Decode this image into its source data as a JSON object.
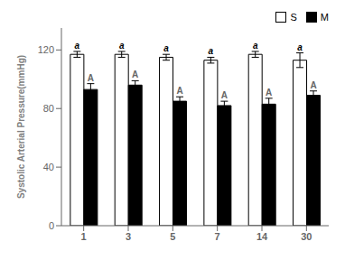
{
  "chart_data": {
    "type": "bar",
    "categories": [
      "1",
      "3",
      "5",
      "7",
      "14",
      "30"
    ],
    "series": [
      {
        "name": "S",
        "color": "#ffffff",
        "values": [
          117,
          117,
          115,
          113,
          117,
          113
        ],
        "errors": [
          2,
          2,
          2,
          2,
          2,
          5
        ],
        "annotations": [
          "a",
          "a",
          "a",
          "a",
          "a",
          "a"
        ]
      },
      {
        "name": "M",
        "color": "#000000",
        "values": [
          93,
          96,
          85,
          82,
          83,
          89
        ],
        "errors": [
          4,
          3,
          3,
          3,
          4,
          3
        ],
        "annotations": [
          "A",
          "A",
          "A",
          "A",
          "A",
          "A"
        ]
      }
    ],
    "edge_color": "#000000",
    "ylabel": "Systolic Arterial Pressure(mmHg)",
    "ylim": [
      0,
      135
    ],
    "yticks": [
      0,
      40,
      80,
      120
    ],
    "grid": false,
    "legend": "upper right"
  }
}
